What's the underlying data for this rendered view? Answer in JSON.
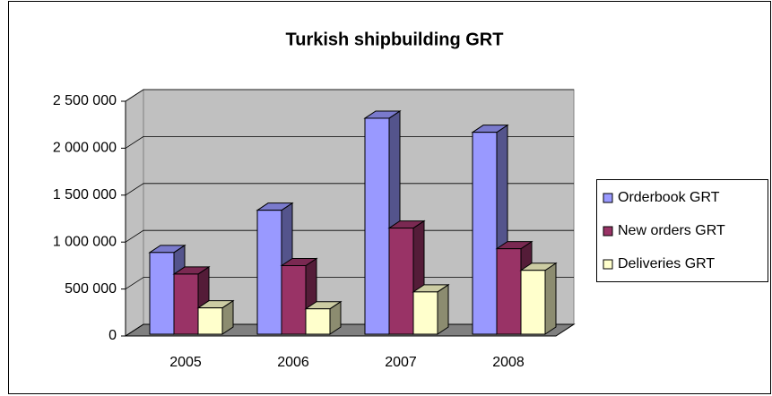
{
  "chart_data": {
    "type": "bar3d",
    "title": "Turkish shipbuilding GRT",
    "categories": [
      "2005",
      "2006",
      "2007",
      "2008"
    ],
    "series": [
      {
        "name": "Orderbook GRT",
        "color": "#9999ff",
        "values": [
          870000,
          1320000,
          2300000,
          2150000
        ]
      },
      {
        "name": "New orders GRT",
        "color": "#993366",
        "values": [
          640000,
          730000,
          1130000,
          910000
        ]
      },
      {
        "name": "Deliveries GRT",
        "color": "#ffffcc",
        "values": [
          280000,
          270000,
          450000,
          680000
        ]
      }
    ],
    "ylim": [
      0,
      2500000
    ],
    "yticks": [
      0,
      {
        "value": 500000,
        "label": "500 000"
      },
      {
        "value": 1000000,
        "label": "1 000 000"
      },
      {
        "value": 1500000,
        "label": "1 500 000"
      },
      {
        "value": 2000000,
        "label": "2 000 000"
      },
      {
        "value": 2500000,
        "label": "2 500 000"
      }
    ],
    "grid": true,
    "legend": "right"
  }
}
